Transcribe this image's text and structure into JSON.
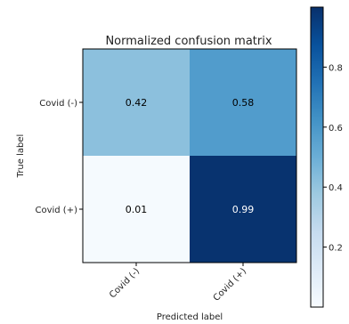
{
  "chart_data": {
    "type": "heatmap",
    "title": "Normalized confusion matrix",
    "xlabel": "Predicted label",
    "ylabel": "True label",
    "x_categories": [
      "Covid (-)",
      "Covid (+)"
    ],
    "y_categories": [
      "Covid (-)",
      "Covid (+)"
    ],
    "values": [
      [
        0.42,
        0.58
      ],
      [
        0.01,
        0.99
      ]
    ],
    "cell_labels": [
      [
        "0.42",
        "0.58"
      ],
      [
        "0.01",
        "0.99"
      ]
    ],
    "colormap": "Blues",
    "color_range": [
      0.0,
      1.0
    ],
    "colorbar_ticks": [
      {
        "value": 0.2,
        "label": "0.2"
      },
      {
        "value": 0.4,
        "label": "0.4"
      },
      {
        "value": 0.6,
        "label": "0.6"
      },
      {
        "value": 0.8,
        "label": "0.8"
      }
    ]
  }
}
